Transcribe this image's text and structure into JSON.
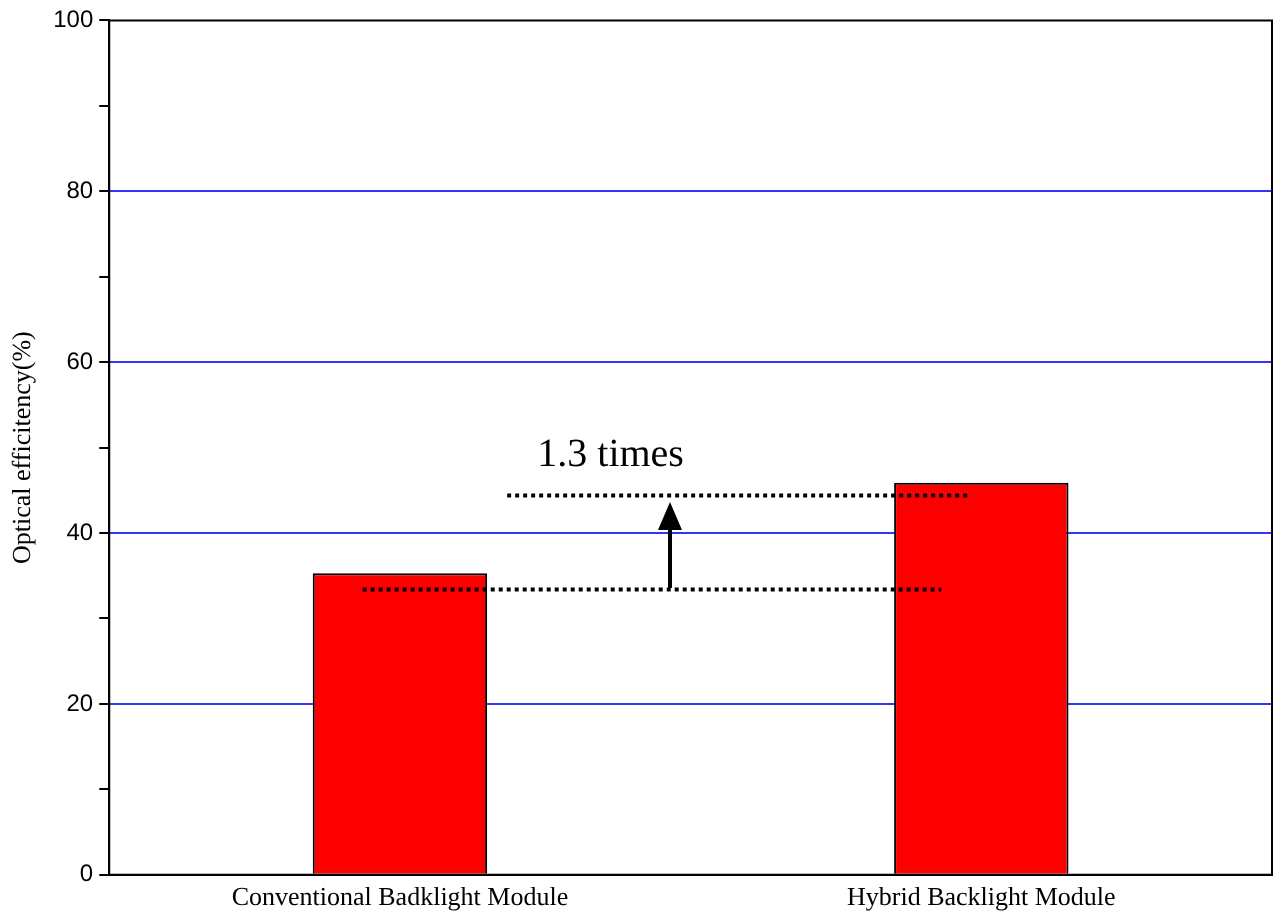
{
  "chart_data": {
    "type": "bar",
    "ylabel": "Optical efficitency(%)",
    "categories": [
      "Conventional Badklight Module",
      "Hybrid Backlight Module"
    ],
    "values": [
      35.3,
      45.9
    ],
    "color": "#ff0000",
    "ylim": [
      0,
      100
    ],
    "yticks": [
      0,
      {
        "value": 10,
        "label": null
      },
      20,
      {
        "value": 30,
        "label": null
      },
      40,
      {
        "value": 50,
        "label": null
      },
      60,
      {
        "value": 70,
        "label": null
      },
      80,
      {
        "value": 90,
        "label": null
      },
      100
    ],
    "grid": "y",
    "annotations": [
      "1.3 times"
    ],
    "ref_lines": [
      {
        "axis": "y",
        "value": 33.4,
        "line_style": "dotted",
        "color": "#000000"
      },
      {
        "axis": "y",
        "value": 44.4,
        "line_style": "dotted",
        "color": "#000000"
      }
    ]
  }
}
